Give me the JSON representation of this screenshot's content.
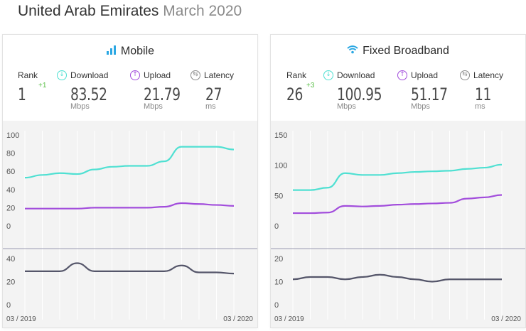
{
  "header": {
    "country": "United Arab Emirates",
    "period": "March 2020"
  },
  "labels": {
    "rank": "Rank",
    "download": "Download",
    "upload": "Upload",
    "latency": "Latency",
    "mbps": "Mbps",
    "ms": "ms",
    "x_start": "03 / 2019",
    "x_end": "03 / 2020"
  },
  "colors": {
    "download": "#4fe0d2",
    "upload": "#a24ddc",
    "latency": "#55566a",
    "rank_change": "#5cc04a"
  },
  "icons": {
    "mobile": "signal-bars-icon",
    "broadband": "wifi-icon",
    "download": "download-arrow-icon",
    "upload": "upload-arrow-icon",
    "latency": "latency-icon"
  },
  "panels": [
    {
      "title": "Mobile",
      "rank": "1",
      "rank_change": "+1",
      "download": "83.52",
      "upload": "21.79",
      "latency": "27"
    },
    {
      "title": "Fixed Broadband",
      "rank": "26",
      "rank_change": "+3",
      "download": "100.95",
      "upload": "51.17",
      "latency": "11"
    }
  ],
  "chart_data": [
    {
      "type": "line",
      "title": "Mobile",
      "x": [
        "03 / 2019",
        "04 / 2019",
        "05 / 2019",
        "06 / 2019",
        "07 / 2019",
        "08 / 2019",
        "09 / 2019",
        "10 / 2019",
        "11 / 2019",
        "12 / 2019",
        "01 / 2020",
        "02 / 2020",
        "03 / 2020"
      ],
      "yticks": [
        0,
        20,
        40,
        60,
        80,
        100
      ],
      "ylim": [
        0,
        100
      ],
      "series": [
        {
          "name": "Download",
          "values": [
            53,
            56,
            58,
            57,
            62,
            65,
            66,
            66,
            71,
            87,
            87,
            87,
            84
          ]
        },
        {
          "name": "Upload",
          "values": [
            19,
            19,
            19,
            19,
            20,
            20,
            20,
            20,
            21,
            25,
            24,
            23,
            22
          ]
        }
      ],
      "lower": {
        "yticks": [
          0,
          20,
          40
        ],
        "ylim": [
          0,
          40
        ],
        "series": [
          {
            "name": "Latency",
            "values": [
              29,
              29,
              29,
              36,
              29,
              29,
              29,
              29,
              29,
              34,
              28,
              28,
              27
            ]
          }
        ]
      }
    },
    {
      "type": "line",
      "title": "Fixed Broadband",
      "x": [
        "03 / 2019",
        "04 / 2019",
        "05 / 2019",
        "06 / 2019",
        "07 / 2019",
        "08 / 2019",
        "09 / 2019",
        "10 / 2019",
        "11 / 2019",
        "12 / 2019",
        "01 / 2020",
        "02 / 2020",
        "03 / 2020"
      ],
      "yticks": [
        0,
        50,
        100,
        150
      ],
      "ylim": [
        0,
        150
      ],
      "series": [
        {
          "name": "Download",
          "values": [
            59,
            59,
            63,
            87,
            84,
            84,
            87,
            89,
            90,
            91,
            94,
            96,
            101
          ]
        },
        {
          "name": "Upload",
          "values": [
            21,
            21,
            22,
            33,
            32,
            33,
            35,
            36,
            37,
            38,
            45,
            47,
            51
          ]
        }
      ],
      "lower": {
        "yticks": [
          0,
          10,
          20
        ],
        "ylim": [
          0,
          20
        ],
        "series": [
          {
            "name": "Latency",
            "values": [
              11,
              12,
              12,
              11,
              12,
              13,
              12,
              11,
              10,
              11,
              11,
              11,
              11
            ]
          }
        ]
      }
    }
  ]
}
